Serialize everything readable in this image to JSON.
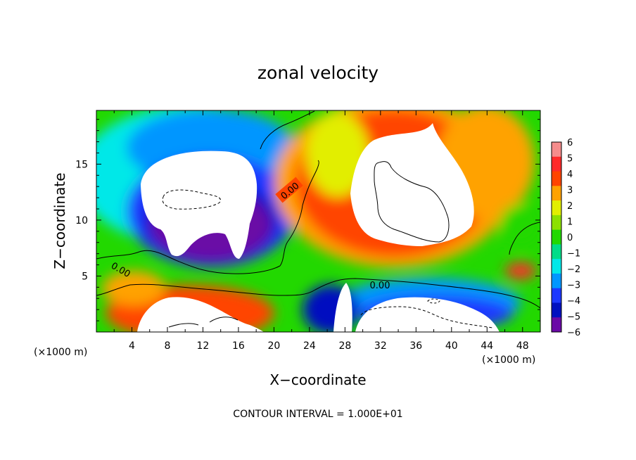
{
  "chart_data": {
    "type": "heatmap",
    "title": "zonal velocity",
    "xlabel": "X−coordinate",
    "ylabel": "Z−coordinate",
    "x_unit_label": "(×1000 m)",
    "y_unit_label": "(×1000 m)",
    "footer": "CONTOUR INTERVAL = 1.000E+01",
    "xlim": [
      0,
      50
    ],
    "ylim": [
      0,
      19.8
    ],
    "xticks": [
      4,
      8,
      12,
      16,
      20,
      24,
      28,
      32,
      36,
      40,
      44,
      48
    ],
    "yticks": [
      5,
      10,
      15
    ],
    "colorbar": {
      "levels": [
        6,
        5,
        4,
        3,
        2,
        1,
        0,
        -1,
        -2,
        -3,
        -4,
        -5,
        -6
      ],
      "labels": [
        "6",
        "5",
        "4",
        "3",
        "2",
        "1",
        "0",
        "−1",
        "−2",
        "−3",
        "−4",
        "−5",
        "−6"
      ],
      "colors": [
        "#f58c8c",
        "#ff2a2a",
        "#ff4400",
        "#ffa200",
        "#e2ee00",
        "#8ce000",
        "#22d800",
        "#00dc88",
        "#00e8e8",
        "#0096ff",
        "#1c38ff",
        "#0010c0",
        "#6a0aa6"
      ]
    },
    "contour_labels": [
      {
        "text": "0.00",
        "x": 22.0,
        "z": 11.6
      },
      {
        "text": "0.00",
        "x": 2.8,
        "z": 5.8
      },
      {
        "text": "0.00",
        "x": 31.2,
        "z": 4.4
      }
    ],
    "grid": false
  }
}
